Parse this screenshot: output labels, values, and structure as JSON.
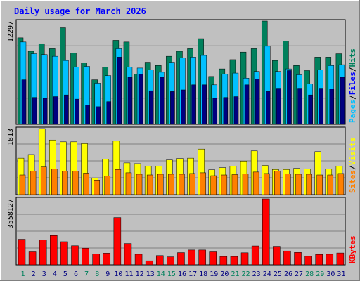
{
  "chart_data": {
    "title": "Daily usage for March 2026",
    "type": "bar",
    "days": [
      "1",
      "2",
      "3",
      "4",
      "5",
      "6",
      "7",
      "8",
      "9",
      "10",
      "11",
      "12",
      "13",
      "14",
      "15",
      "16",
      "17",
      "18",
      "19",
      "20",
      "21",
      "22",
      "23",
      "24",
      "25",
      "26",
      "27",
      "28",
      "29",
      "30",
      "31"
    ],
    "weekend_days": [
      "1",
      "7",
      "8",
      "14",
      "15",
      "21",
      "22",
      "28",
      "29"
    ],
    "colors": {
      "page_bg": "#c0c0c0",
      "plot_bg": "#c0c0c0",
      "grid": "#808080",
      "title": "#0000ff",
      "hits": "#00805c",
      "files": "#00c0ff",
      "pages": "#000080",
      "sites": "#ff8000",
      "visits": "#ffff00",
      "kbytes": "#ff0000",
      "weekday_label": "#000080",
      "weekend_label": "#00805c",
      "divider": "#000000"
    },
    "panels": [
      {
        "id": "requests",
        "scale_max": 12297,
        "scale_label": "12297",
        "legend": [
          {
            "text": "Pages",
            "color": "#00c0ff"
          },
          {
            "text": "/",
            "color": "#000000"
          },
          {
            "text": "Files",
            "color": "#0000ff"
          },
          {
            "text": "/",
            "color": "#000000"
          },
          {
            "text": "Hits",
            "color": "#00805c"
          }
        ],
        "series": [
          {
            "name": "Hits",
            "color": "#00805c",
            "values": [
              10300,
              8700,
              9600,
              9000,
              11500,
              8500,
              7300,
              5300,
              6800,
              10000,
              9800,
              6000,
              7400,
              7000,
              8100,
              8700,
              9000,
              10200,
              5700,
              6600,
              7700,
              8600,
              9000,
              12297,
              7600,
              9900,
              7000,
              6400,
              8000,
              8000,
              8400
            ]
          },
          {
            "name": "Files",
            "color": "#00c0ff",
            "values": [
              9800,
              8400,
              8300,
              8100,
              7600,
              6800,
              6900,
              4900,
              5800,
              9000,
              6800,
              6700,
              6500,
              6200,
              7400,
              7900,
              8000,
              8200,
              4700,
              6000,
              6100,
              5500,
              6300,
              9300,
              6300,
              6600,
              5900,
              4800,
              6500,
              7000,
              7100
            ]
          },
          {
            "name": "Pages",
            "color": "#000080",
            "values": [
              5300,
              3200,
              3100,
              3300,
              3500,
              3000,
              2300,
              2100,
              2700,
              8000,
              5600,
              6000,
              4000,
              5600,
              3900,
              4100,
              4700,
              4700,
              3100,
              3200,
              3300,
              4700,
              5400,
              3900,
              4300,
              6400,
              4300,
              3500,
              4300,
              4200,
              5600
            ]
          }
        ]
      },
      {
        "id": "visitors",
        "scale_max": 1813,
        "scale_label": "1813",
        "legend": [
          {
            "text": "Sites",
            "color": "#ff8000"
          },
          {
            "text": "/",
            "color": "#000000"
          },
          {
            "text": "Visits",
            "color": "#ffff00"
          }
        ],
        "series": [
          {
            "name": "Visits",
            "color": "#ffff00",
            "values": [
              1000,
              1100,
              1813,
              1500,
              1450,
              1450,
              1400,
              450,
              970,
              1470,
              870,
              850,
              780,
              780,
              950,
              990,
              1000,
              1250,
              680,
              740,
              780,
              920,
              1200,
              800,
              690,
              690,
              720,
              700,
              1180,
              700,
              780
            ]
          },
          {
            "name": "Sites",
            "color": "#ff8000",
            "values": [
              540,
              650,
              760,
              700,
              650,
              650,
              590,
              400,
              510,
              690,
              600,
              560,
              540,
              560,
              560,
              560,
              580,
              600,
              520,
              540,
              550,
              570,
              620,
              580,
              650,
              570,
              560,
              560,
              540,
              540,
              580
            ]
          }
        ]
      },
      {
        "id": "traffic",
        "scale_max": 3558127,
        "scale_label": "3558127",
        "legend": [
          {
            "text": "KBytes",
            "color": "#ff0000"
          }
        ],
        "series": [
          {
            "name": "KBytes",
            "color": "#ff0000",
            "values": [
              1380000,
              700000,
              1350000,
              1580000,
              1250000,
              1030000,
              900000,
              580000,
              630000,
              2550000,
              1150000,
              570000,
              220000,
              500000,
              430000,
              660000,
              800000,
              800000,
              700000,
              450000,
              450000,
              650000,
              1020000,
              3558127,
              1000000,
              750000,
              670000,
              460000,
              560000,
              570000,
              640000
            ]
          }
        ]
      }
    ]
  }
}
